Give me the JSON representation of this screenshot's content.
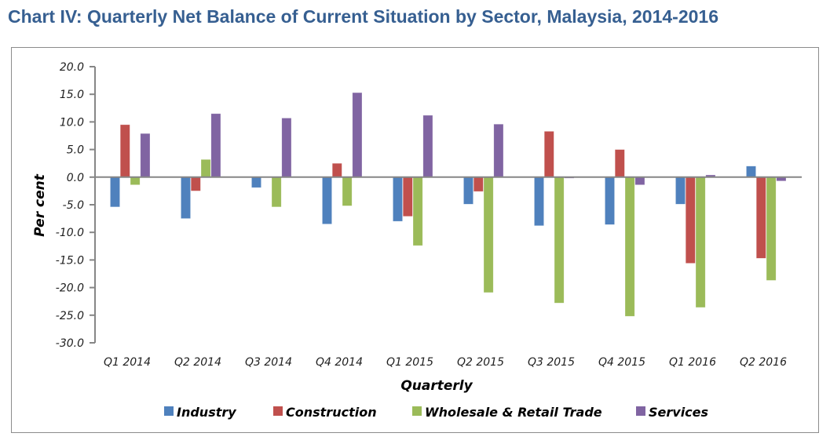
{
  "chart_data": {
    "type": "bar",
    "title": "Chart IV: Quarterly Net Balance of Current Situation by Sector, Malaysia, 2014-2016",
    "xlabel": "Quarterly",
    "ylabel": "Per cent",
    "ylim": [
      -30,
      20
    ],
    "yticks": [
      20,
      15,
      10,
      5,
      0,
      -5,
      -10,
      -15,
      -20,
      -25,
      -30
    ],
    "ytick_labels": [
      "20.0",
      "15.0",
      "10.0",
      "5.0",
      "0.0",
      "-5.0",
      "-10.0",
      "-15.0",
      "-20.0",
      "-25.0",
      "-30.0"
    ],
    "grid": false,
    "legend_position": "bottom",
    "categories": [
      "Q1 2014",
      "Q2 2014",
      "Q3 2014",
      "Q4 2014",
      "Q1 2015",
      "Q2 2015",
      "Q3 2015",
      "Q4 2015",
      "Q1 2016",
      "Q2 2016"
    ],
    "series": [
      {
        "name": "Industry",
        "color": "#4F81BD",
        "values": [
          -5.4,
          -7.5,
          -1.9,
          -8.5,
          -8.0,
          -4.9,
          -8.8,
          -8.6,
          -4.9,
          2.0
        ]
      },
      {
        "name": "Construction",
        "color": "#C0504D",
        "values": [
          9.5,
          -2.5,
          0.0,
          2.5,
          -7.1,
          -2.6,
          8.3,
          5.0,
          -15.6,
          -14.7
        ]
      },
      {
        "name": "Wholesale & Retail Trade",
        "color": "#9BBB59",
        "values": [
          -1.4,
          3.2,
          -5.4,
          -5.2,
          -12.4,
          -20.9,
          -22.8,
          -25.2,
          -23.6,
          -18.7
        ]
      },
      {
        "name": "Services",
        "color": "#8064A2",
        "values": [
          7.9,
          11.5,
          10.7,
          15.3,
          11.2,
          9.6,
          -0.2,
          -1.4,
          0.4,
          -0.7
        ]
      }
    ]
  }
}
